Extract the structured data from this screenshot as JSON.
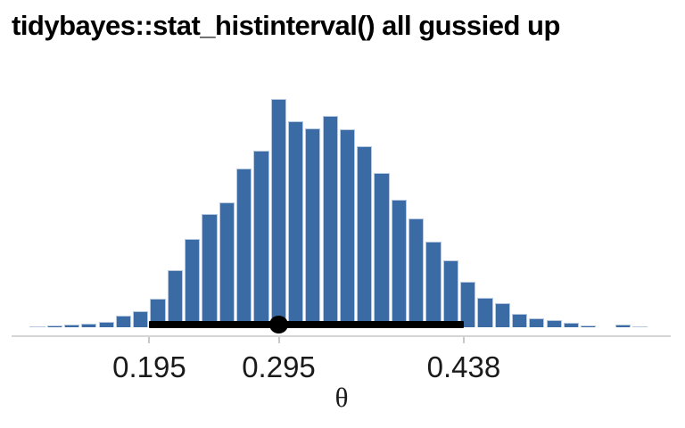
{
  "chart_data": {
    "type": "histinterval",
    "title": "tidybayes::stat_histinterval() all gussied up",
    "xlabel": "θ",
    "x_ticks": [
      {
        "value": 0.195,
        "label": "0.195"
      },
      {
        "value": 0.295,
        "label": "0.295"
      },
      {
        "value": 0.438,
        "label": "0.438"
      }
    ],
    "axis_range_theta": [
      0.089,
      0.598
    ],
    "interval": {
      "lower": 0.195,
      "point": 0.295,
      "upper": 0.438
    },
    "bins": {
      "theta_start": 0.1025,
      "theta_bin_width": 0.01331,
      "rel_heights": [
        0.004,
        0.008,
        0.012,
        0.016,
        0.023,
        0.051,
        0.07,
        0.125,
        0.25,
        0.387,
        0.496,
        0.547,
        0.695,
        0.773,
        1.0,
        0.902,
        0.871,
        0.926,
        0.867,
        0.793,
        0.676,
        0.559,
        0.477,
        0.375,
        0.293,
        0.199,
        0.129,
        0.105,
        0.059,
        0.039,
        0.031,
        0.02,
        0.008,
        0.0,
        0.012,
        0.004
      ]
    },
    "colors": {
      "bar_fill": "#3a6ba5",
      "bar_stroke": "#b7c9e0",
      "interval": "#000000",
      "point": "#000000",
      "axis_line": "#d5d5d5",
      "tick": "#c9c9c9",
      "text": "#1a1a1a",
      "title": "#000000",
      "background": "#ffffff"
    },
    "legend": "none",
    "grid": "off"
  }
}
